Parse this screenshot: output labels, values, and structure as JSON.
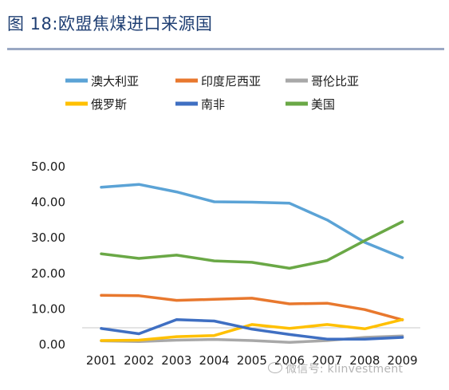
{
  "page": {
    "title": "图 18:欧盟焦煤进口来源国",
    "watermark": "微信号: klinvestment"
  },
  "chart_data": {
    "type": "line",
    "title": "图 18:欧盟焦煤进口来源国",
    "xlabel": "",
    "ylabel": "",
    "x": [
      "2001",
      "2002",
      "2003",
      "2004",
      "2005",
      "2006",
      "2007",
      "2008",
      "2009"
    ],
    "y_ticks": [
      "50.00",
      "40.00",
      "30.00",
      "20.00",
      "10.00",
      "0.00"
    ],
    "ylim": [
      0,
      50
    ],
    "grid": false,
    "legend_position": "top",
    "series": [
      {
        "name": "澳大利亚",
        "color": "#5ba3d6",
        "values": [
          44.0,
          44.8,
          42.7,
          39.9,
          39.8,
          39.5,
          34.8,
          28.5,
          24.2
        ]
      },
      {
        "name": "印度尼西亚",
        "color": "#e8782e",
        "values": [
          13.6,
          13.5,
          12.2,
          12.5,
          12.8,
          11.2,
          11.4,
          9.6,
          6.7
        ]
      },
      {
        "name": "哥伦比亚",
        "color": "#a8a8a8",
        "values": [
          0.8,
          0.6,
          1.0,
          1.2,
          0.9,
          0.4,
          0.9,
          1.8,
          2.2
        ]
      },
      {
        "name": "俄罗斯",
        "color": "#ffc000",
        "values": [
          0.9,
          1.0,
          2.0,
          2.3,
          5.4,
          4.3,
          5.4,
          4.2,
          6.8
        ]
      },
      {
        "name": "南非",
        "color": "#3f6fc2",
        "values": [
          4.3,
          2.8,
          6.8,
          6.4,
          4.1,
          2.6,
          1.3,
          1.3,
          1.8
        ]
      },
      {
        "name": "美国",
        "color": "#6aa846",
        "values": [
          25.3,
          24.0,
          24.9,
          23.3,
          22.9,
          21.2,
          23.4,
          29.0,
          34.3
        ]
      }
    ]
  }
}
